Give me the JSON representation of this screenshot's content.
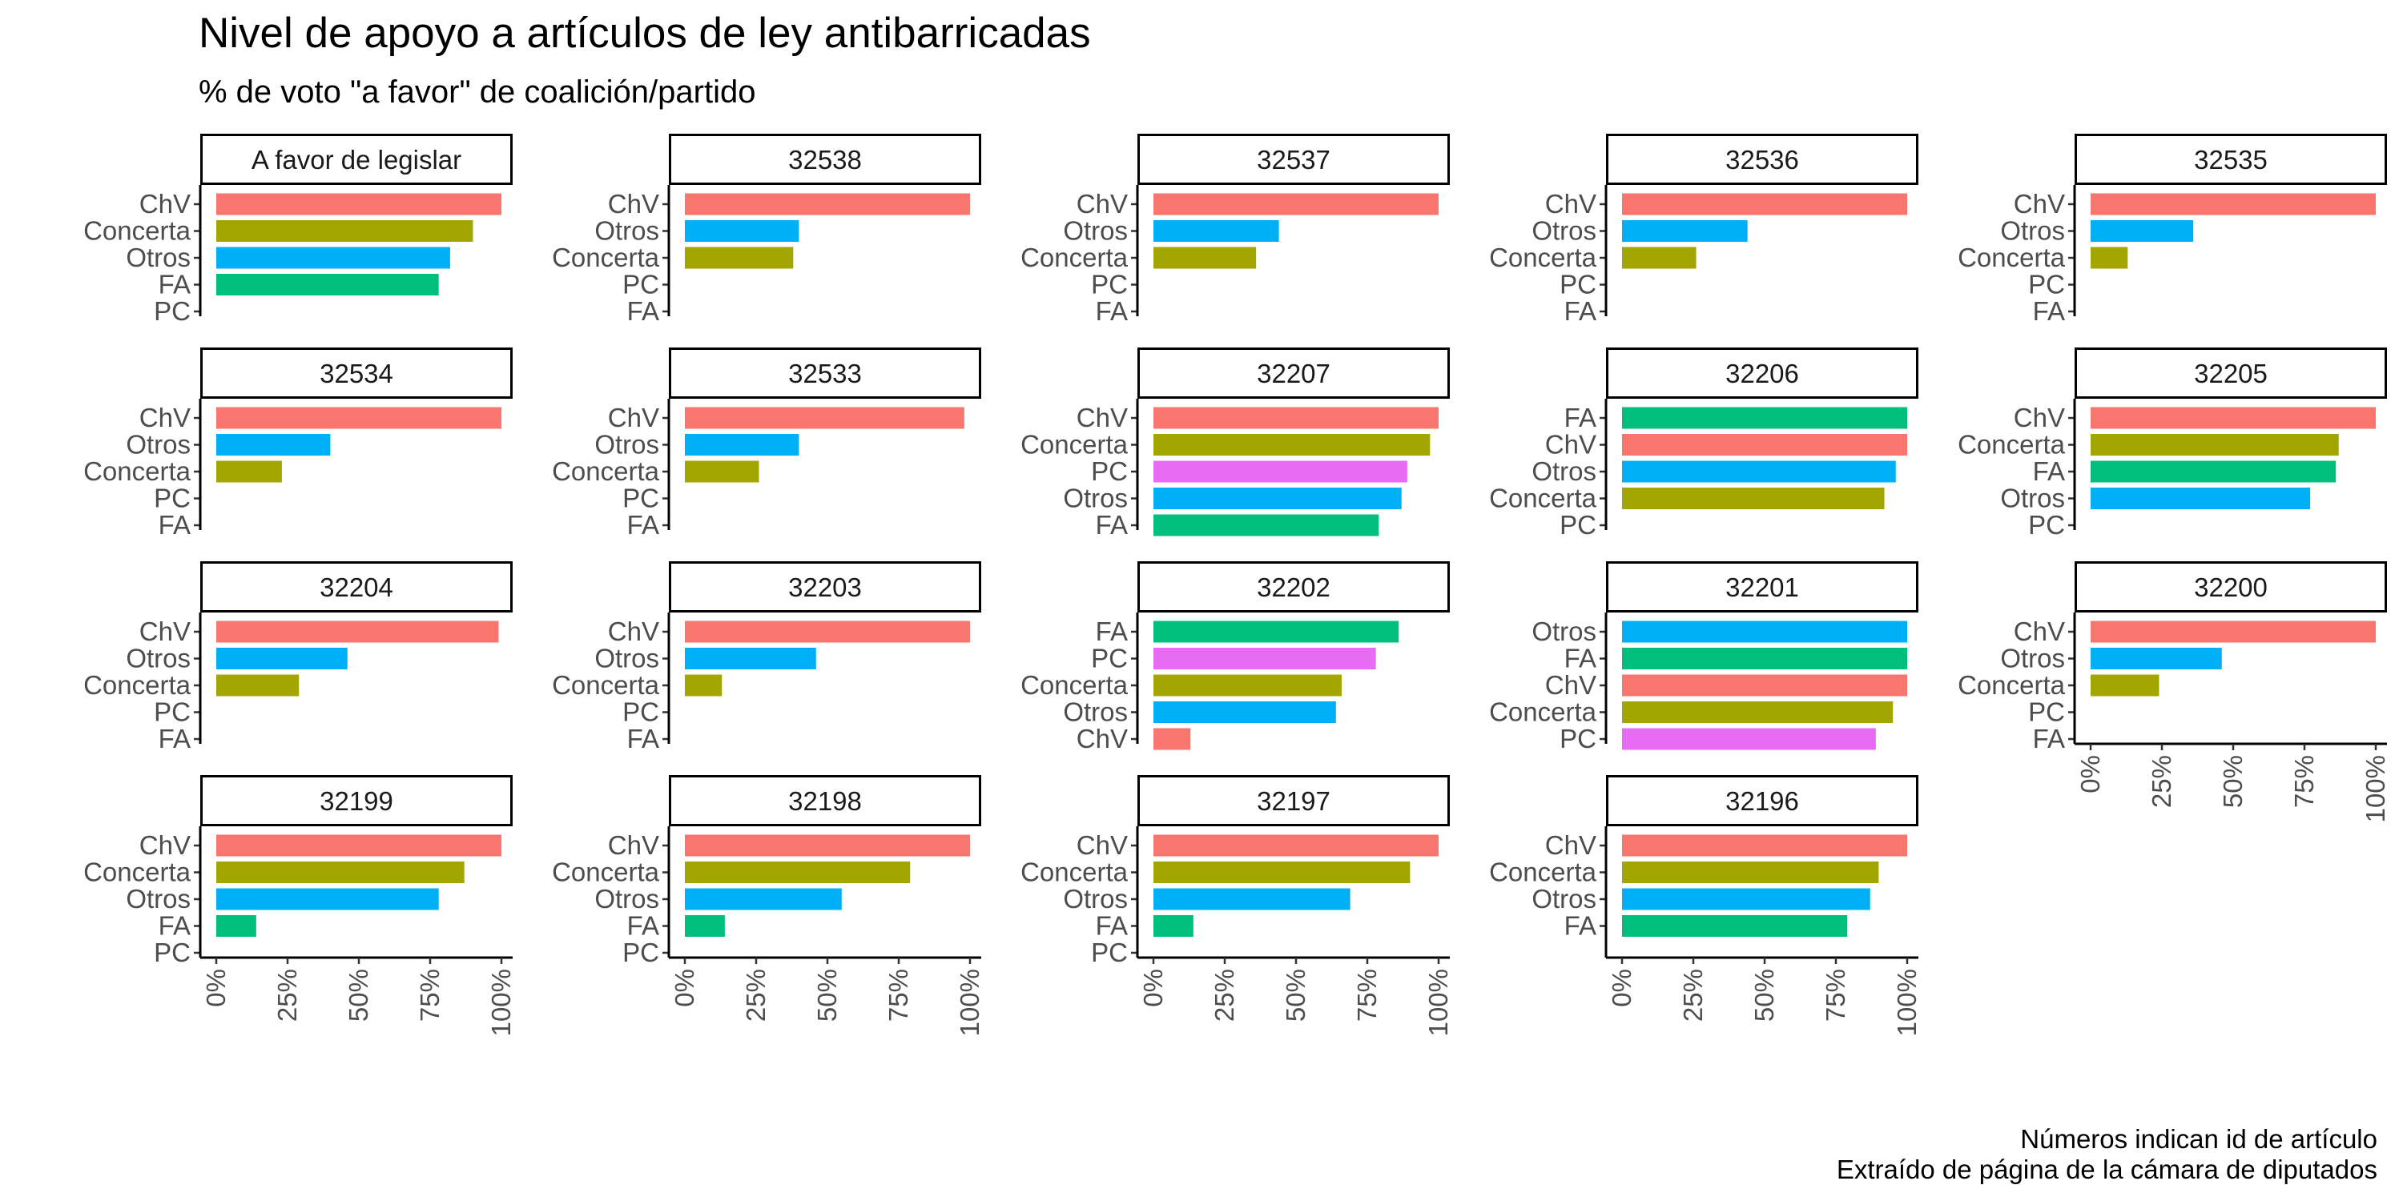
{
  "chart_data": {
    "type": "bar",
    "orientation": "horizontal",
    "title": "Nivel de apoyo a artículos de ley antibarricadas",
    "subtitle": "% de voto \"a favor\" de coalición/partido",
    "caption": [
      "Números indican id de artículo",
      "Extraído de página de la cámara de diputados"
    ],
    "xlim": [
      0,
      1
    ],
    "x_ticks": [
      "0%",
      "25%",
      "50%",
      "75%",
      "100%"
    ],
    "grid": false,
    "colors": {
      "ChV": "#F8766D",
      "Concerta": "#A3A500",
      "FA": "#00BF7D",
      "Otros": "#00B0F6",
      "PC": "#E76BF3"
    },
    "panels": [
      {
        "id": "A favor de legislar",
        "categories": [
          "ChV",
          "Concerta",
          "Otros",
          "FA",
          "PC"
        ],
        "values": [
          1.0,
          0.9,
          0.82,
          0.78,
          0
        ]
      },
      {
        "id": "32538",
        "categories": [
          "ChV",
          "Otros",
          "Concerta",
          "PC",
          "FA"
        ],
        "values": [
          1.0,
          0.4,
          0.38,
          0,
          0
        ]
      },
      {
        "id": "32537",
        "categories": [
          "ChV",
          "Otros",
          "Concerta",
          "PC",
          "FA"
        ],
        "values": [
          1.0,
          0.44,
          0.36,
          0,
          0
        ]
      },
      {
        "id": "32536",
        "categories": [
          "ChV",
          "Otros",
          "Concerta",
          "PC",
          "FA"
        ],
        "values": [
          1.0,
          0.44,
          0.26,
          0,
          0
        ]
      },
      {
        "id": "32535",
        "categories": [
          "ChV",
          "Otros",
          "Concerta",
          "PC",
          "FA"
        ],
        "values": [
          1.0,
          0.36,
          0.13,
          0,
          0
        ]
      },
      {
        "id": "32534",
        "categories": [
          "ChV",
          "Otros",
          "Concerta",
          "PC",
          "FA"
        ],
        "values": [
          1.0,
          0.4,
          0.23,
          0,
          0
        ]
      },
      {
        "id": "32533",
        "categories": [
          "ChV",
          "Otros",
          "Concerta",
          "PC",
          "FA"
        ],
        "values": [
          0.98,
          0.4,
          0.26,
          0,
          0
        ]
      },
      {
        "id": "32207",
        "categories": [
          "ChV",
          "Concerta",
          "PC",
          "Otros",
          "FA"
        ],
        "values": [
          1.0,
          0.97,
          0.89,
          0.87,
          0.79
        ]
      },
      {
        "id": "32206",
        "categories": [
          "FA",
          "ChV",
          "Otros",
          "Concerta",
          "PC"
        ],
        "values": [
          1.0,
          1.0,
          0.96,
          0.92,
          0
        ]
      },
      {
        "id": "32205",
        "categories": [
          "ChV",
          "Concerta",
          "FA",
          "Otros",
          "PC"
        ],
        "values": [
          1.0,
          0.87,
          0.86,
          0.77,
          0
        ]
      },
      {
        "id": "32204",
        "categories": [
          "ChV",
          "Otros",
          "Concerta",
          "PC",
          "FA"
        ],
        "values": [
          0.99,
          0.46,
          0.29,
          0,
          0
        ]
      },
      {
        "id": "32203",
        "categories": [
          "ChV",
          "Otros",
          "Concerta",
          "PC",
          "FA"
        ],
        "values": [
          1.0,
          0.46,
          0.13,
          0,
          0
        ]
      },
      {
        "id": "32202",
        "categories": [
          "FA",
          "PC",
          "Concerta",
          "Otros",
          "ChV"
        ],
        "values": [
          0.86,
          0.78,
          0.66,
          0.64,
          0.13
        ]
      },
      {
        "id": "32201",
        "categories": [
          "Otros",
          "FA",
          "ChV",
          "Concerta",
          "PC"
        ],
        "values": [
          1.0,
          1.0,
          1.0,
          0.95,
          0.89
        ]
      },
      {
        "id": "32200",
        "categories": [
          "ChV",
          "Otros",
          "Concerta",
          "PC",
          "FA"
        ],
        "values": [
          1.0,
          0.46,
          0.24,
          0,
          0
        ]
      },
      {
        "id": "32199",
        "categories": [
          "ChV",
          "Concerta",
          "Otros",
          "FA",
          "PC"
        ],
        "values": [
          1.0,
          0.87,
          0.78,
          0.14,
          0
        ]
      },
      {
        "id": "32198",
        "categories": [
          "ChV",
          "Concerta",
          "Otros",
          "FA",
          "PC"
        ],
        "values": [
          1.0,
          0.79,
          0.55,
          0.14,
          0
        ]
      },
      {
        "id": "32197",
        "categories": [
          "ChV",
          "Concerta",
          "Otros",
          "FA",
          "PC"
        ],
        "values": [
          1.0,
          0.9,
          0.69,
          0.14,
          0
        ]
      },
      {
        "id": "32196",
        "categories": [
          "ChV",
          "Concerta",
          "Otros",
          "FA"
        ],
        "values": [
          1.0,
          0.9,
          0.87,
          0.79
        ]
      }
    ]
  }
}
